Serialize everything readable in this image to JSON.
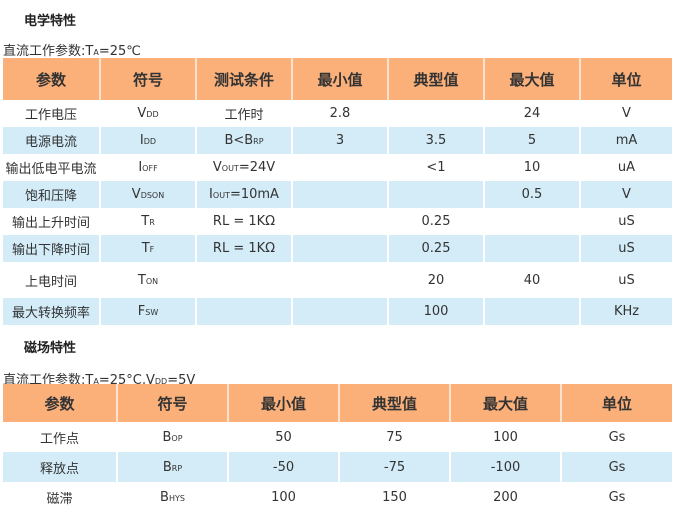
{
  "section1": {
    "title": "电学特性",
    "subtitle_pre": "直流工作参数:T",
    "subtitle_sub": "A",
    "subtitle_post": "=25℃",
    "headers": [
      "参数",
      "符号",
      "测试条件",
      "最小值",
      "典型值",
      "最大值",
      "单位"
    ],
    "rows": [
      [
        [
          [
            "工作电压",
            ""
          ]
        ],
        [
          [
            "V",
            "DD"
          ]
        ],
        [
          [
            "工作时",
            ""
          ]
        ],
        [
          [
            "2.8",
            ""
          ]
        ],
        [
          [
            "",
            ""
          ]
        ],
        [
          [
            "24",
            ""
          ]
        ],
        [
          [
            "V",
            ""
          ]
        ]
      ],
      [
        [
          [
            "电源电流",
            ""
          ]
        ],
        [
          [
            "I",
            "DD"
          ]
        ],
        [
          [
            "B<B",
            "RP"
          ]
        ],
        [
          [
            "3",
            ""
          ]
        ],
        [
          [
            "3.5",
            ""
          ]
        ],
        [
          [
            "5",
            ""
          ]
        ],
        [
          [
            "mA",
            ""
          ]
        ]
      ],
      [
        [
          [
            "输出低电平电流",
            ""
          ]
        ],
        [
          [
            "I",
            "OFF"
          ]
        ],
        [
          [
            "V",
            "OUT"
          ],
          [
            "=24V",
            ""
          ]
        ],
        [
          [
            "",
            ""
          ]
        ],
        [
          [
            "<1",
            ""
          ]
        ],
        [
          [
            "10",
            ""
          ]
        ],
        [
          [
            "uA",
            ""
          ]
        ]
      ],
      [
        [
          [
            "饱和压降",
            ""
          ]
        ],
        [
          [
            "V",
            "DSon"
          ]
        ],
        [
          [
            "I",
            "OUT"
          ],
          [
            "=10mA",
            ""
          ]
        ],
        [
          [
            "",
            ""
          ]
        ],
        [
          [
            "",
            ""
          ]
        ],
        [
          [
            "0.5",
            ""
          ]
        ],
        [
          [
            "V",
            ""
          ]
        ]
      ],
      [
        [
          [
            "输出上升时间",
            ""
          ]
        ],
        [
          [
            "T",
            "R"
          ]
        ],
        [
          [
            "RL = 1KΩ",
            ""
          ]
        ],
        [
          [
            "",
            ""
          ]
        ],
        [
          [
            "0.25",
            ""
          ]
        ],
        [
          [
            "",
            ""
          ]
        ],
        [
          [
            "uS",
            ""
          ]
        ]
      ],
      [
        [
          [
            "输出下降时间",
            ""
          ]
        ],
        [
          [
            "T",
            "F"
          ]
        ],
        [
          [
            "RL = 1KΩ",
            ""
          ]
        ],
        [
          [
            "",
            ""
          ]
        ],
        [
          [
            "0.25",
            ""
          ]
        ],
        [
          [
            "",
            ""
          ]
        ],
        [
          [
            "uS",
            ""
          ]
        ]
      ],
      [
        [
          [
            "上电时间",
            ""
          ]
        ],
        [
          [
            "T",
            "ON"
          ]
        ],
        [
          [
            "",
            ""
          ]
        ],
        [
          [
            "",
            ""
          ]
        ],
        [
          [
            "20",
            ""
          ]
        ],
        [
          [
            "40",
            ""
          ]
        ],
        [
          [
            "uS",
            ""
          ]
        ]
      ],
      [
        [
          [
            "最大转换频率",
            ""
          ]
        ],
        [
          [
            "F",
            "SW"
          ]
        ],
        [
          [
            "",
            ""
          ]
        ],
        [
          [
            "",
            ""
          ]
        ],
        [
          [
            "100",
            ""
          ]
        ],
        [
          [
            "",
            ""
          ]
        ],
        [
          [
            "KHz",
            ""
          ]
        ]
      ]
    ]
  },
  "section2": {
    "title": "磁场特性",
    "subtitle_pre": "直流工作参数:T",
    "subtitle_sub": "A",
    "subtitle_mid": "=25°C,V",
    "subtitle_sub2": "DD",
    "subtitle_post": "=5V",
    "headers": [
      "参数",
      "符号",
      "最小值",
      "典型值",
      "最大值",
      "单位"
    ],
    "rows": [
      [
        [
          [
            "工作点",
            ""
          ]
        ],
        [
          [
            "B",
            "OP"
          ]
        ],
        [
          [
            "50",
            ""
          ]
        ],
        [
          [
            "75",
            ""
          ]
        ],
        [
          [
            "100",
            ""
          ]
        ],
        [
          [
            "Gs",
            ""
          ]
        ]
      ],
      [
        [
          [
            "释放点",
            ""
          ]
        ],
        [
          [
            "B",
            "RP"
          ]
        ],
        [
          [
            "-50",
            ""
          ]
        ],
        [
          [
            "-75",
            ""
          ]
        ],
        [
          [
            "-100",
            ""
          ]
        ],
        [
          [
            "Gs",
            ""
          ]
        ]
      ],
      [
        [
          [
            "磁滞",
            ""
          ]
        ],
        [
          [
            "B",
            "HYS"
          ]
        ],
        [
          [
            "100",
            ""
          ]
        ],
        [
          [
            "150",
            ""
          ]
        ],
        [
          [
            "200",
            ""
          ]
        ],
        [
          [
            "Gs",
            ""
          ]
        ]
      ]
    ]
  },
  "colors": {
    "header": "#fbb07a",
    "stripe": "#d3ecf8"
  }
}
